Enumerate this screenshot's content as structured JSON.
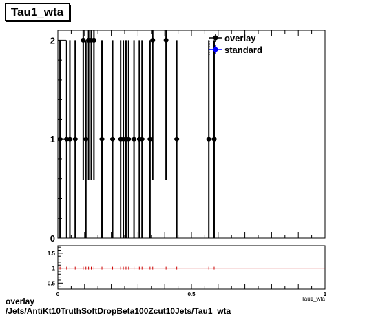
{
  "title": "Tau1_wta",
  "caption": {
    "line1": "overlay",
    "line2": "/Jets/AntiKt10TruthSoftDropBeta100Zcut10Jets/Tau1_wta"
  },
  "colors": {
    "overlay": "#000000",
    "standard": "#0000ff",
    "ratio_line": "#cc0000"
  },
  "chart_data": [
    {
      "type": "scatter",
      "title": "Tau1_wta",
      "xlim": [
        0,
        1
      ],
      "ylim": [
        0,
        2.1
      ],
      "y_ticks": [
        0,
        1,
        2
      ],
      "legend_position": "top-right",
      "series": [
        {
          "name": "overlay",
          "points": [
            {
              "x": 0.008,
              "y": 1
            },
            {
              "x": 0.033,
              "y": 1
            },
            {
              "x": 0.045,
              "y": 1
            },
            {
              "x": 0.065,
              "y": 1
            },
            {
              "x": 0.095,
              "y": 2
            },
            {
              "x": 0.105,
              "y": 1
            },
            {
              "x": 0.115,
              "y": 2
            },
            {
              "x": 0.125,
              "y": 2
            },
            {
              "x": 0.135,
              "y": 2
            },
            {
              "x": 0.165,
              "y": 1
            },
            {
              "x": 0.205,
              "y": 1
            },
            {
              "x": 0.235,
              "y": 1
            },
            {
              "x": 0.245,
              "y": 1
            },
            {
              "x": 0.255,
              "y": 1
            },
            {
              "x": 0.265,
              "y": 1
            },
            {
              "x": 0.285,
              "y": 1
            },
            {
              "x": 0.305,
              "y": 1
            },
            {
              "x": 0.315,
              "y": 1
            },
            {
              "x": 0.345,
              "y": 1
            },
            {
              "x": 0.355,
              "y": 2
            },
            {
              "x": 0.405,
              "y": 2
            },
            {
              "x": 0.445,
              "y": 1
            },
            {
              "x": 0.565,
              "y": 1
            },
            {
              "x": 0.585,
              "y": 1
            }
          ]
        },
        {
          "name": "standard",
          "points": []
        }
      ]
    },
    {
      "type": "line",
      "xlim": [
        0,
        1
      ],
      "ylim": [
        0.3,
        1.75
      ],
      "y_ticks": [
        0.5,
        1,
        1.5
      ],
      "y_tick_labels": [
        "0.5",
        "1",
        "1.5"
      ],
      "x_ticks": [
        0,
        0.5,
        1
      ],
      "x_tick_labels": [
        "0",
        "0.5",
        "1"
      ],
      "xlabel": "Tau1_wta",
      "reference_line": 1
    }
  ]
}
